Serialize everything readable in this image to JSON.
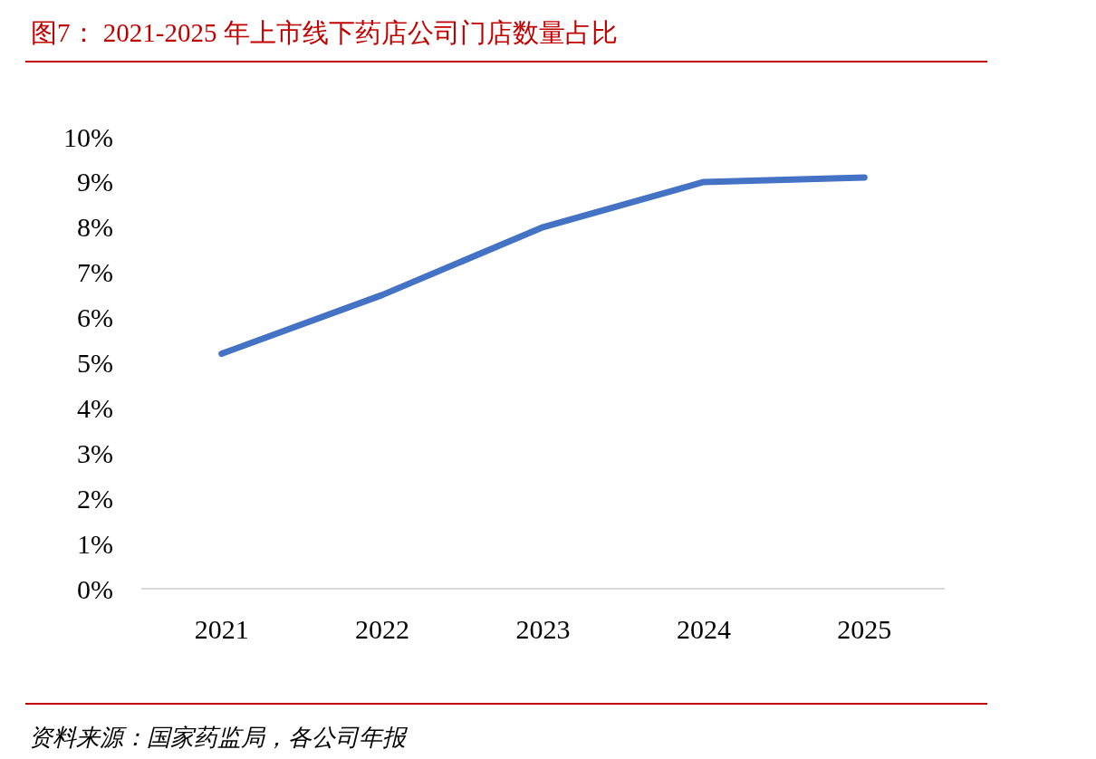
{
  "chart_data": {
    "type": "line",
    "title": "图7： 2021-2025 年上市线下药店公司门店数量占比",
    "categories": [
      "2021",
      "2022",
      "2023",
      "2024",
      "2025"
    ],
    "series": [
      {
        "color": "#4472c4",
        "values": [
          5.2,
          6.5,
          8.0,
          9.0,
          9.1
        ]
      }
    ],
    "ylim": [
      0,
      10
    ],
    "yticks": [
      {
        "value": 0,
        "label": "0%"
      },
      {
        "value": 1,
        "label": "1%"
      },
      {
        "value": 2,
        "label": "2%"
      },
      {
        "value": 3,
        "label": "3%"
      },
      {
        "value": 4,
        "label": "4%"
      },
      {
        "value": 5,
        "label": "5%"
      },
      {
        "value": 6,
        "label": "6%"
      },
      {
        "value": 7,
        "label": "7%"
      },
      {
        "value": 8,
        "label": "8%"
      },
      {
        "value": 9,
        "label": "9%"
      },
      {
        "value": 10,
        "label": "10%"
      }
    ],
    "grid": false,
    "marker": "none",
    "line_style": "solid",
    "annotations": [
      "资料来源：国家药监局，各公司年报"
    ]
  }
}
